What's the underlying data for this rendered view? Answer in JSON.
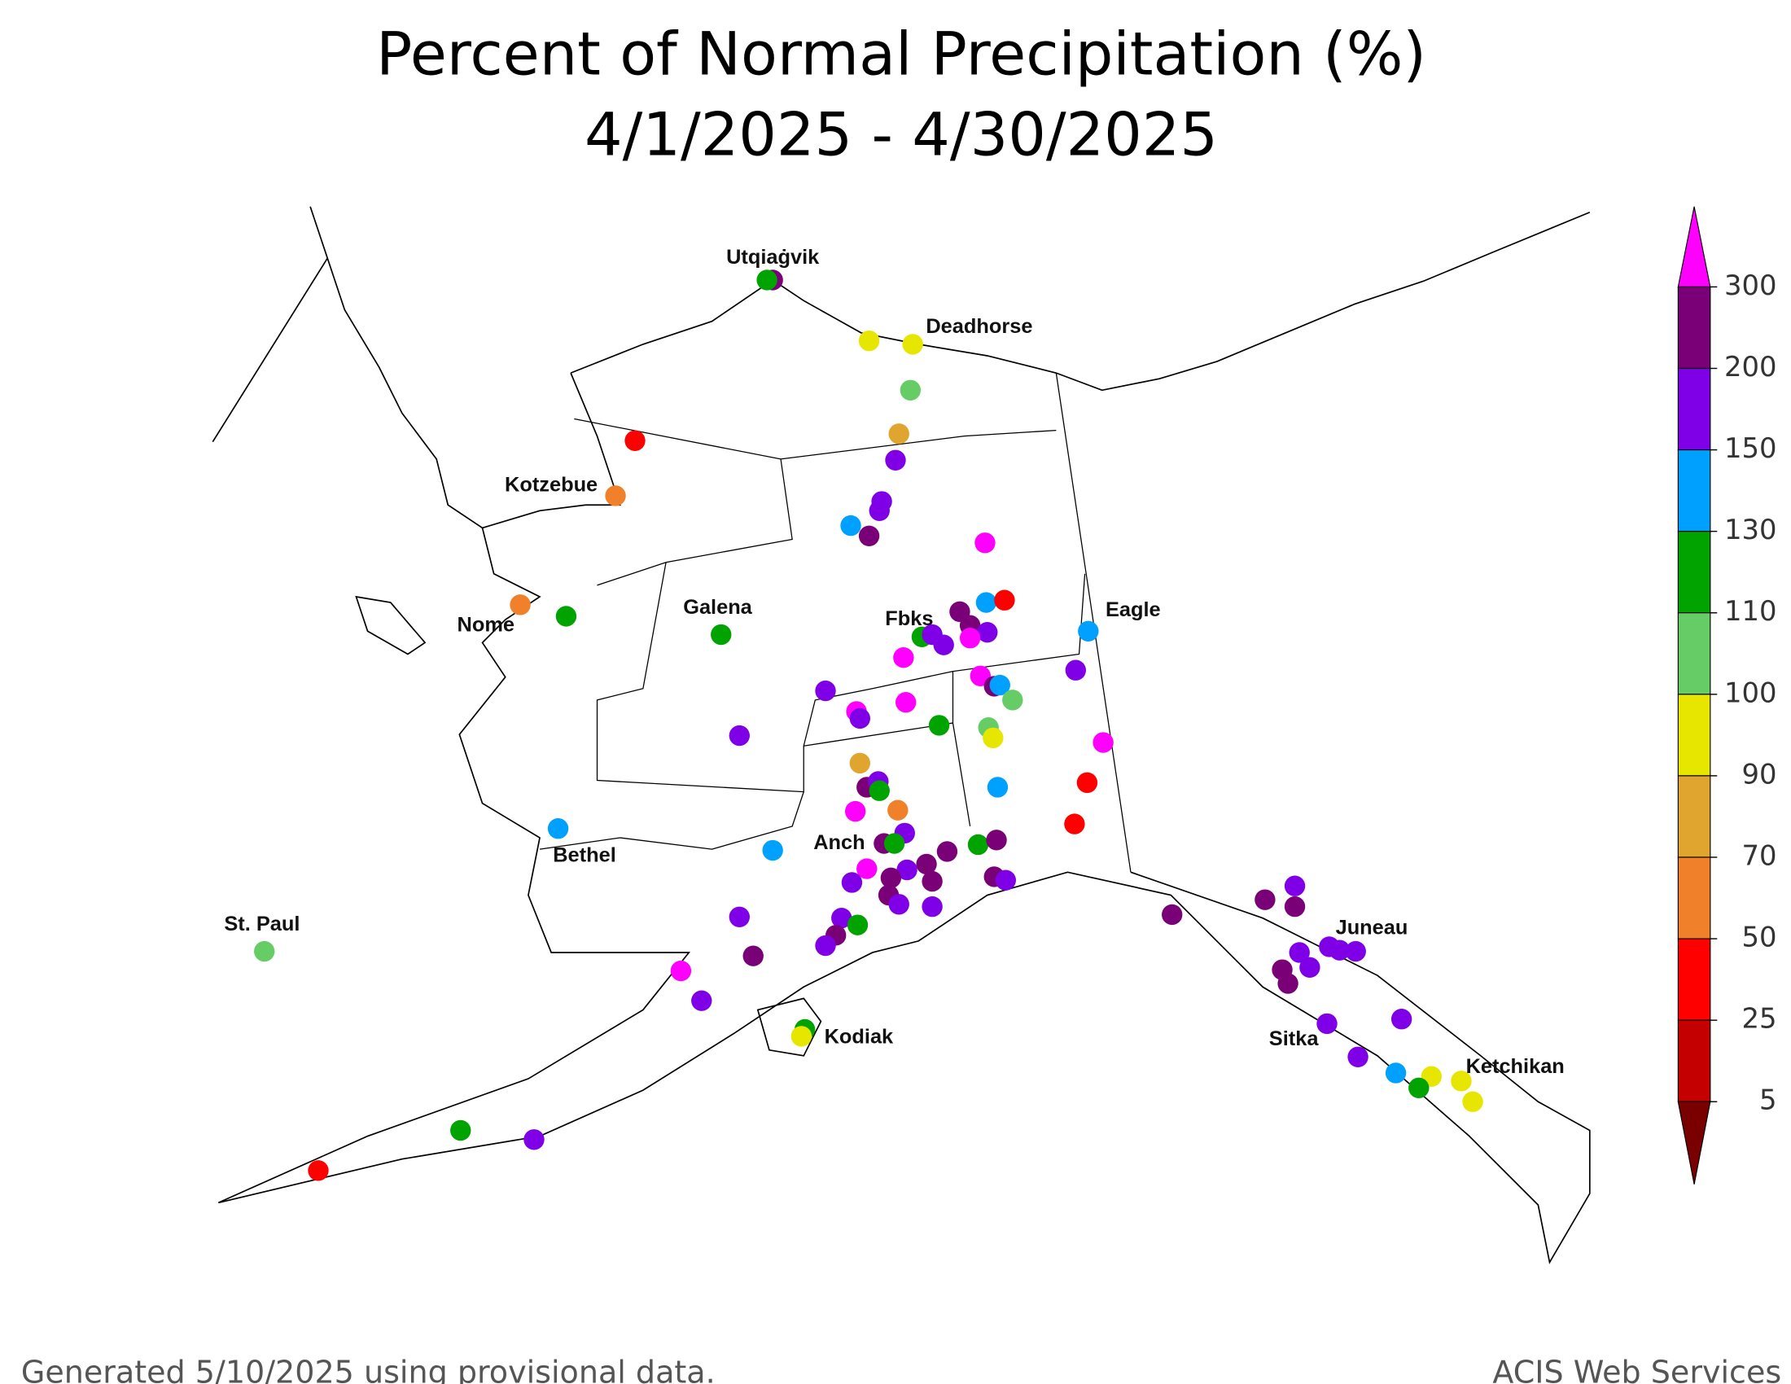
{
  "title": "Percent of Normal Precipitation (%)",
  "subtitle": "4/1/2025 - 4/30/2025",
  "places": [
    "Utqiaġvik",
    "Deadhorse",
    "Kotzebue",
    "Nome",
    "Galena",
    "Fbks",
    "Eagle",
    "Bethel",
    "Anch",
    "St. Paul",
    "Juneau",
    "Kodiak",
    "Sitka",
    "Ketchikan"
  ],
  "legend": {
    "colors": [
      "#ff00ff",
      "#7a0078",
      "#7f00e6",
      "#00a0ff",
      "#00a300",
      "#66cc66",
      "#e6e600",
      "#e0a52e",
      "#f0802a",
      "#ff0000",
      "#c40000",
      "#7a0000"
    ],
    "ticks": [
      300,
      200,
      150,
      130,
      110,
      100,
      90,
      70,
      50,
      25,
      5
    ]
  },
  "footer": {
    "left": "Generated 5/10/2025 using provisional data.",
    "right": "ACIS Web Services"
  }
}
